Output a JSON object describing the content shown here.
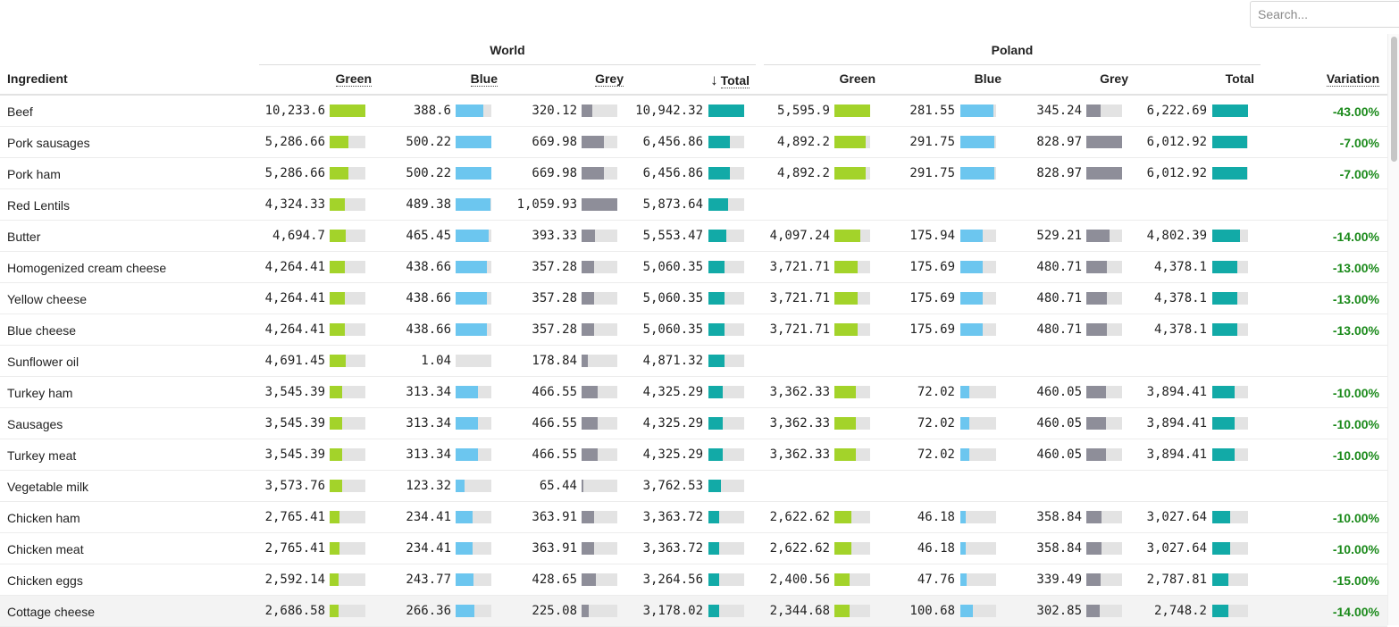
{
  "search": {
    "placeholder": "Search..."
  },
  "groups": {
    "world": "World",
    "poland": "Poland"
  },
  "headers": {
    "ingredient": "Ingredient",
    "world_green": "Green",
    "world_blue": "Blue",
    "world_grey": "Grey",
    "world_total_arrow": "↓",
    "world_total": "Total",
    "poland_green": "Green",
    "poland_blue": "Blue",
    "poland_grey": "Grey",
    "poland_total": "Total",
    "variation": "Variation"
  },
  "colors": {
    "green": "#a3d32a",
    "blue": "#6cc6ef",
    "grey": "#8e8e99",
    "total": "#12aaa7",
    "track": "#e3e3e3",
    "variation": "#1b8a1b"
  },
  "rows": [
    {
      "name": "Beef",
      "w": [
        "10,233.6",
        "388.6",
        "320.12",
        "10,942.32"
      ],
      "wf": [
        1.0,
        0.78,
        0.3,
        1.0
      ],
      "p": [
        "5,595.9",
        "281.55",
        "345.24",
        "6,222.69"
      ],
      "pf": [
        1.0,
        0.92,
        0.4,
        1.0
      ],
      "variation": "-43.00%"
    },
    {
      "name": "Pork sausages",
      "w": [
        "5,286.66",
        "500.22",
        "669.98",
        "6,456.86"
      ],
      "wf": [
        0.52,
        1.0,
        0.63,
        0.59
      ],
      "p": [
        "4,892.2",
        "291.75",
        "828.97",
        "6,012.92"
      ],
      "pf": [
        0.87,
        0.95,
        1.0,
        0.97
      ],
      "variation": "-7.00%"
    },
    {
      "name": "Pork ham",
      "w": [
        "5,286.66",
        "500.22",
        "669.98",
        "6,456.86"
      ],
      "wf": [
        0.52,
        1.0,
        0.63,
        0.59
      ],
      "p": [
        "4,892.2",
        "291.75",
        "828.97",
        "6,012.92"
      ],
      "pf": [
        0.87,
        0.95,
        1.0,
        0.97
      ],
      "variation": "-7.00%"
    },
    {
      "name": "Red Lentils",
      "w": [
        "4,324.33",
        "489.38",
        "1,059.93",
        "5,873.64"
      ],
      "wf": [
        0.42,
        0.98,
        1.0,
        0.54
      ],
      "p": null,
      "pf": null,
      "variation": ""
    },
    {
      "name": "Butter",
      "w": [
        "4,694.7",
        "465.45",
        "393.33",
        "5,553.47"
      ],
      "wf": [
        0.46,
        0.93,
        0.37,
        0.51
      ],
      "p": [
        "4,097.24",
        "175.94",
        "529.21",
        "4,802.39"
      ],
      "pf": [
        0.73,
        0.62,
        0.64,
        0.77
      ],
      "variation": "-14.00%"
    },
    {
      "name": "Homogenized cream cheese",
      "w": [
        "4,264.41",
        "438.66",
        "357.28",
        "5,060.35"
      ],
      "wf": [
        0.42,
        0.88,
        0.34,
        0.46
      ],
      "p": [
        "3,721.71",
        "175.69",
        "480.71",
        "4,378.1"
      ],
      "pf": [
        0.66,
        0.62,
        0.58,
        0.7
      ],
      "variation": "-13.00%"
    },
    {
      "name": "Yellow cheese",
      "w": [
        "4,264.41",
        "438.66",
        "357.28",
        "5,060.35"
      ],
      "wf": [
        0.42,
        0.88,
        0.34,
        0.46
      ],
      "p": [
        "3,721.71",
        "175.69",
        "480.71",
        "4,378.1"
      ],
      "pf": [
        0.66,
        0.62,
        0.58,
        0.7
      ],
      "variation": "-13.00%"
    },
    {
      "name": "Blue cheese",
      "w": [
        "4,264.41",
        "438.66",
        "357.28",
        "5,060.35"
      ],
      "wf": [
        0.42,
        0.88,
        0.34,
        0.46
      ],
      "p": [
        "3,721.71",
        "175.69",
        "480.71",
        "4,378.1"
      ],
      "pf": [
        0.66,
        0.62,
        0.58,
        0.7
      ],
      "variation": "-13.00%"
    },
    {
      "name": "Sunflower oil",
      "w": [
        "4,691.45",
        "1.04",
        "178.84",
        "4,871.32"
      ],
      "wf": [
        0.46,
        0.0,
        0.17,
        0.45
      ],
      "p": null,
      "pf": null,
      "variation": ""
    },
    {
      "name": "Turkey ham",
      "w": [
        "3,545.39",
        "313.34",
        "466.55",
        "4,325.29"
      ],
      "wf": [
        0.35,
        0.63,
        0.44,
        0.4
      ],
      "p": [
        "3,362.33",
        "72.02",
        "460.05",
        "3,894.41"
      ],
      "pf": [
        0.6,
        0.26,
        0.55,
        0.63
      ],
      "variation": "-10.00%"
    },
    {
      "name": "Sausages",
      "w": [
        "3,545.39",
        "313.34",
        "466.55",
        "4,325.29"
      ],
      "wf": [
        0.35,
        0.63,
        0.44,
        0.4
      ],
      "p": [
        "3,362.33",
        "72.02",
        "460.05",
        "3,894.41"
      ],
      "pf": [
        0.6,
        0.26,
        0.55,
        0.63
      ],
      "variation": "-10.00%"
    },
    {
      "name": "Turkey meat",
      "w": [
        "3,545.39",
        "313.34",
        "466.55",
        "4,325.29"
      ],
      "wf": [
        0.35,
        0.63,
        0.44,
        0.4
      ],
      "p": [
        "3,362.33",
        "72.02",
        "460.05",
        "3,894.41"
      ],
      "pf": [
        0.6,
        0.26,
        0.55,
        0.63
      ],
      "variation": "-10.00%"
    },
    {
      "name": "Vegetable milk",
      "w": [
        "3,573.76",
        "123.32",
        "65.44",
        "3,762.53"
      ],
      "wf": [
        0.35,
        0.25,
        0.06,
        0.34
      ],
      "p": null,
      "pf": null,
      "variation": ""
    },
    {
      "name": "Chicken ham",
      "w": [
        "2,765.41",
        "234.41",
        "363.91",
        "3,363.72"
      ],
      "wf": [
        0.27,
        0.47,
        0.34,
        0.31
      ],
      "p": [
        "2,622.62",
        "46.18",
        "358.84",
        "3,027.64"
      ],
      "pf": [
        0.47,
        0.16,
        0.43,
        0.49
      ],
      "variation": "-10.00%"
    },
    {
      "name": "Chicken meat",
      "w": [
        "2,765.41",
        "234.41",
        "363.91",
        "3,363.72"
      ],
      "wf": [
        0.27,
        0.47,
        0.34,
        0.31
      ],
      "p": [
        "2,622.62",
        "46.18",
        "358.84",
        "3,027.64"
      ],
      "pf": [
        0.47,
        0.16,
        0.43,
        0.49
      ],
      "variation": "-10.00%"
    },
    {
      "name": "Chicken eggs",
      "w": [
        "2,592.14",
        "243.77",
        "428.65",
        "3,264.56"
      ],
      "wf": [
        0.25,
        0.49,
        0.4,
        0.3
      ],
      "p": [
        "2,400.56",
        "47.76",
        "339.49",
        "2,787.81"
      ],
      "pf": [
        0.43,
        0.17,
        0.41,
        0.45
      ],
      "variation": "-15.00%"
    },
    {
      "name": "Cottage cheese",
      "w": [
        "2,686.58",
        "266.36",
        "225.08",
        "3,178.02"
      ],
      "wf": [
        0.26,
        0.53,
        0.21,
        0.29
      ],
      "p": [
        "2,344.68",
        "100.68",
        "302.85",
        "2,748.2"
      ],
      "pf": [
        0.42,
        0.36,
        0.37,
        0.44
      ],
      "variation": "-14.00%",
      "highlight": true
    }
  ]
}
